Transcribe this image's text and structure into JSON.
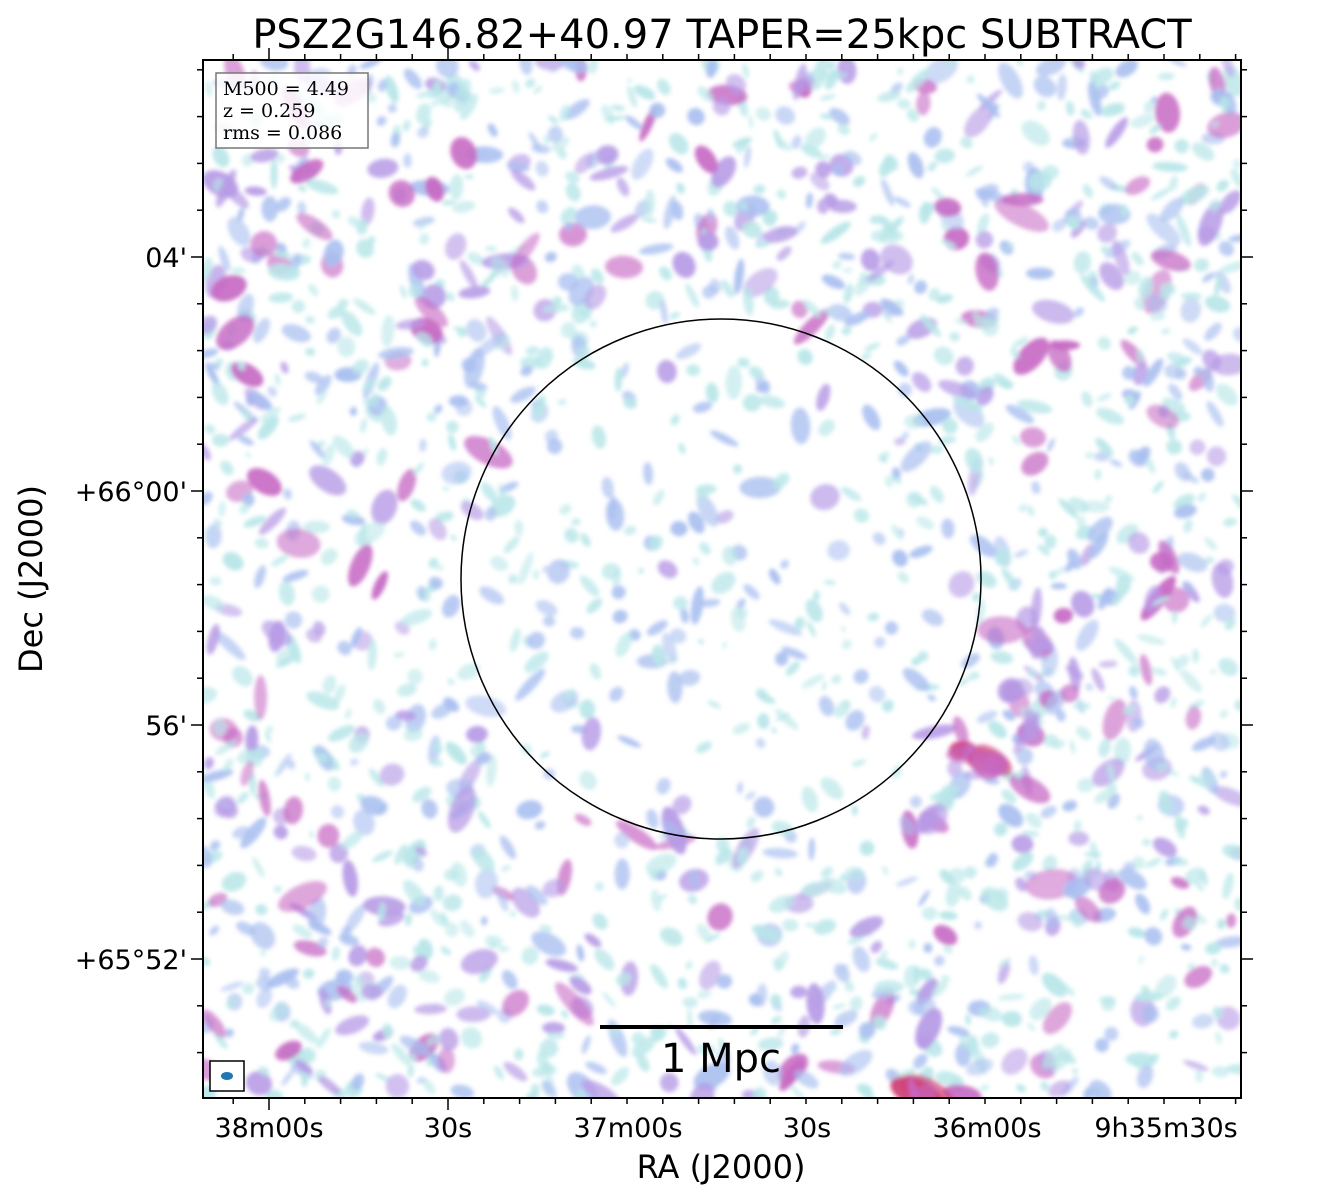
{
  "chart_data": {
    "type": "heatmap",
    "title": "PSZ2G146.82+40.97 TAPER=25kpc SUBTRACT",
    "xlabel": "RA (J2000)",
    "ylabel": "Dec (J2000)",
    "x_ticks": [
      "38m00s",
      "30s",
      "37m00s",
      "30s",
      "36m00s",
      "9h35m30s"
    ],
    "y_ticks": [
      "04'",
      "+66°00'",
      "56'",
      "+65°52'"
    ],
    "info": {
      "line1": "M500 = 4.49",
      "line2": "z = 0.259",
      "line3": "rms = 0.086"
    },
    "scalebar_label": "1 Mpc",
    "colormap": [
      "#b8e6e8",
      "#a9bff0",
      "#b79be6",
      "#c76ac4",
      "#d0437a"
    ],
    "circle_color": "#000000",
    "beam_color": "#1f77b4",
    "grid": false
  }
}
